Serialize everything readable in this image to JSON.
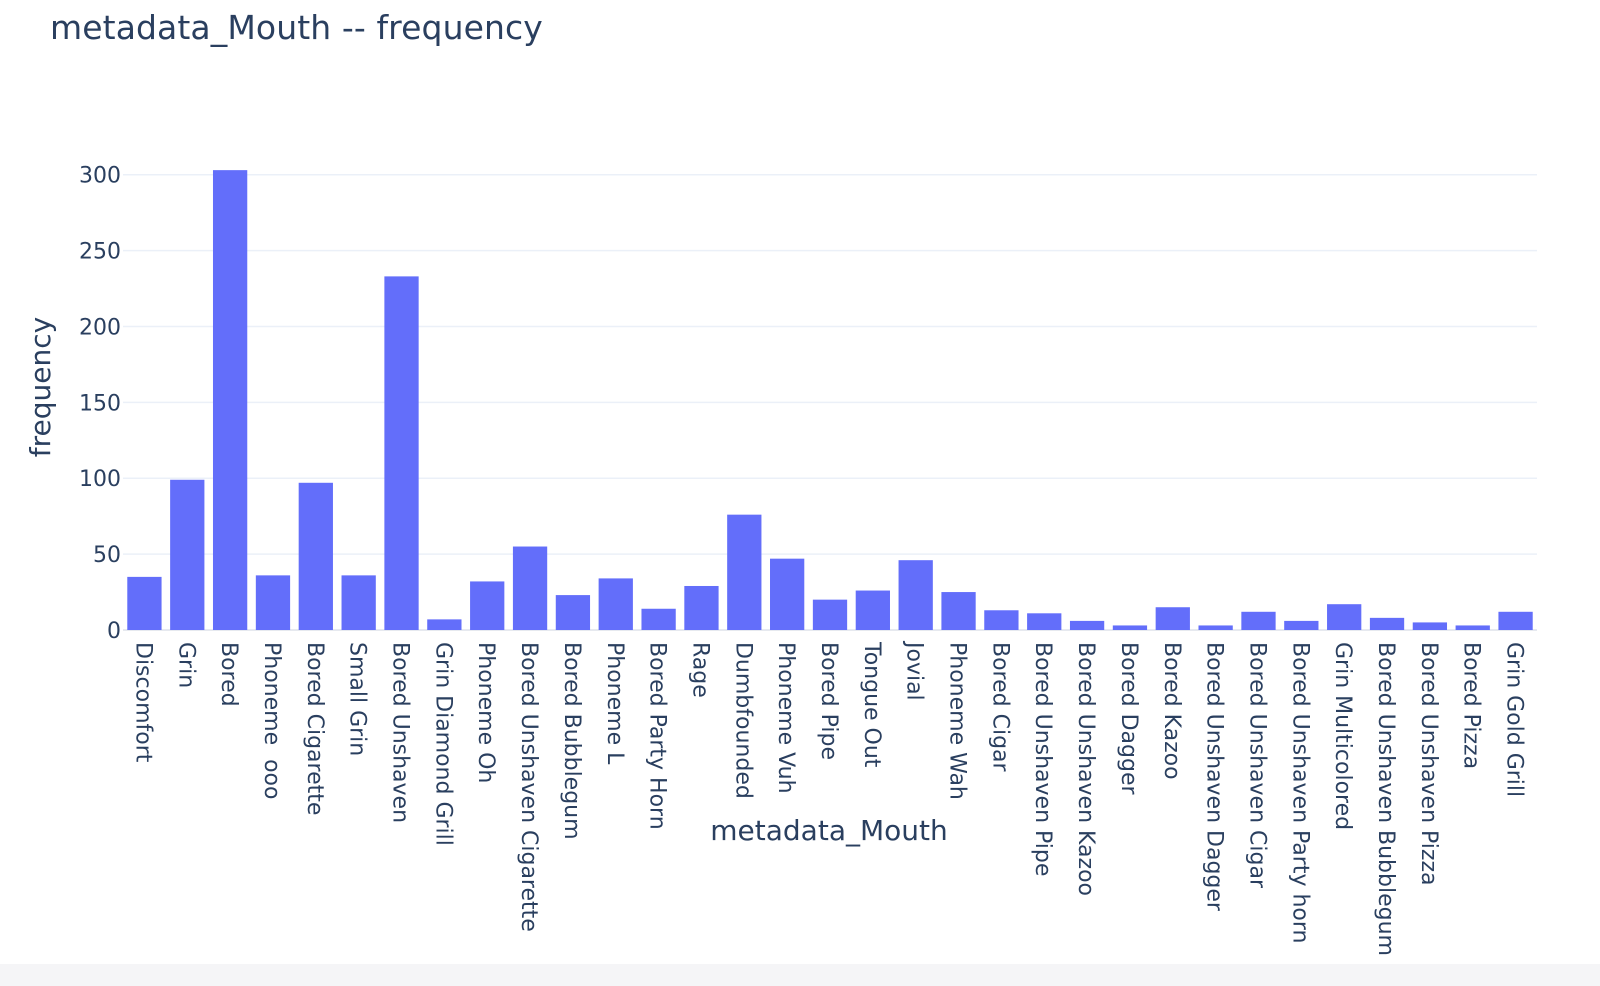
{
  "chart_data": {
    "type": "bar",
    "title": "metadata_Mouth -- frequency",
    "xlabel": "metadata_Mouth",
    "ylabel": "frequency",
    "ylim": [
      0,
      311
    ],
    "yticks": [
      0,
      50,
      100,
      150,
      200,
      250,
      300
    ],
    "grid": true,
    "bar_color": "#636efa",
    "categories": [
      "Discomfort",
      "Grin",
      "Bored",
      "Phoneme  ooo",
      "Bored Cigarette",
      "Small Grin",
      "Bored Unshaven",
      "Grin Diamond Grill",
      "Phoneme Oh",
      "Bored Unshaven Cigarette",
      "Bored Bubblegum",
      "Phoneme L",
      "Bored Party Horn",
      "Rage",
      "Dumbfounded",
      "Phoneme Vuh",
      "Bored Pipe",
      "Tongue Out",
      "Jovial",
      "Phoneme Wah",
      "Bored Cigar",
      "Bored Unshaven Pipe",
      "Bored Unshaven Kazoo",
      "Bored Dagger",
      "Bored Kazoo",
      "Bored Unshaven Dagger",
      "Bored Unshaven Cigar",
      "Bored Unshaven Party horn",
      "Grin Multicolored",
      "Bored Unshaven Bubblegum",
      "Bored Unshaven Pizza",
      "Bored Pizza",
      "Grin Gold Grill"
    ],
    "values": [
      35,
      99,
      303,
      36,
      97,
      36,
      233,
      7,
      32,
      55,
      23,
      34,
      14,
      29,
      76,
      47,
      20,
      26,
      46,
      25,
      13,
      11,
      6,
      3,
      15,
      3,
      12,
      6,
      17,
      8,
      5,
      3,
      12
    ]
  }
}
